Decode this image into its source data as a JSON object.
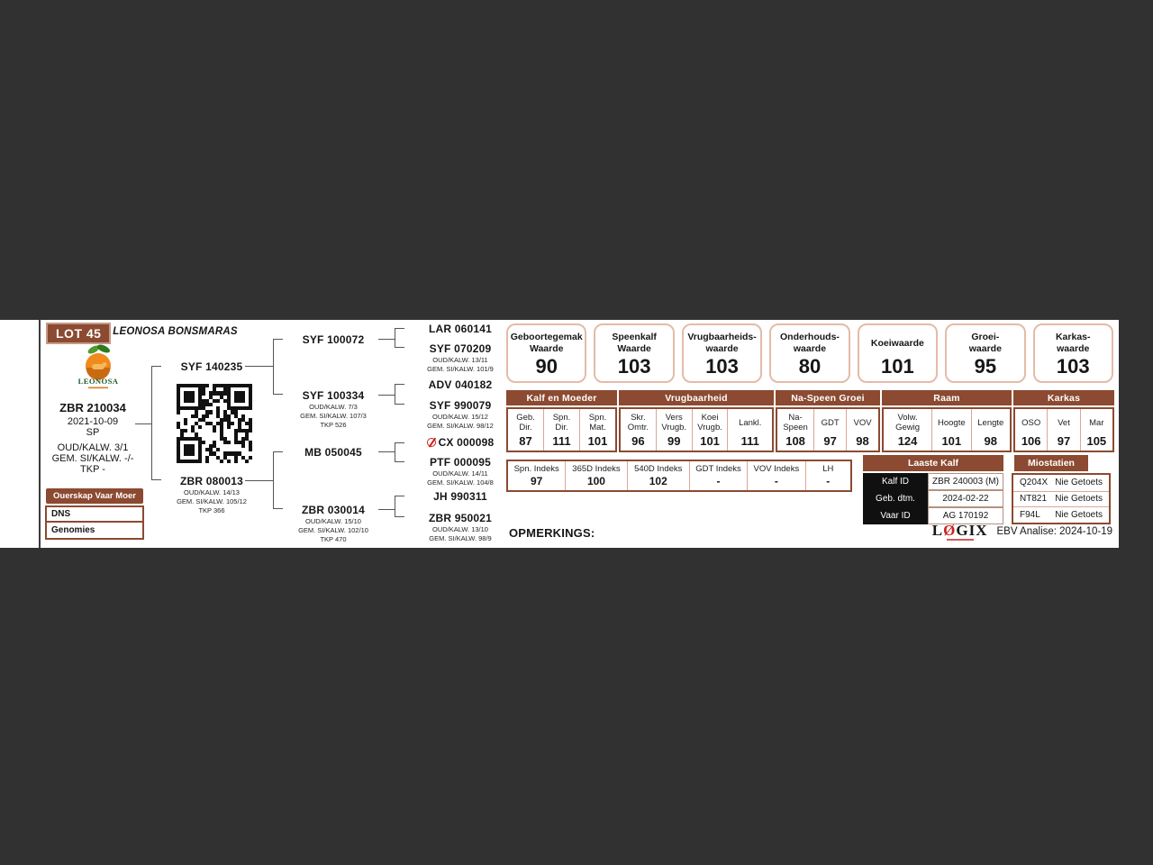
{
  "colors": {
    "brown": "#8B4A31",
    "box_border": "#E4BBA8",
    "cell_border": "#D9A896",
    "red": "#CC2020",
    "dark_bg": "#313131",
    "black_cell": "#101010"
  },
  "header": {
    "lot": "LOT 45",
    "title": "LEONOSA BONSMARAS"
  },
  "logo": {
    "name": "LEONOSA"
  },
  "animal": {
    "id": "ZBR 210034",
    "dob": "2021-10-09",
    "status": "SP",
    "stat1": "OUD/KALW. 3/1",
    "stat2": "GEM. SI/KALW. -/-",
    "stat3": "TKP -"
  },
  "ouerskap": {
    "col1": "Ouerskap",
    "col2": "Vaar",
    "col3": "Moer",
    "row1": "DNS",
    "row2": "Genomies"
  },
  "pedigree": {
    "sire": {
      "id": "SYF 140235"
    },
    "dam": {
      "id": "ZBR 080013",
      "l1": "OUD/KALW. 14/13",
      "l2": "GEM. SI/KALW. 105/12",
      "l3": "TKP 366"
    },
    "gp": [
      {
        "id": "SYF 100072"
      },
      {
        "id": "SYF 100334",
        "l1": "OUD/KALW. 7/3",
        "l2": "GEM. SI/KALW. 107/3",
        "l3": "TKP 526"
      },
      {
        "id": "MB 050045"
      },
      {
        "id": "ZBR 030014",
        "l1": "OUD/KALW. 15/10",
        "l2": "GEM. SI/KALW. 102/10",
        "l3": "TKP 470"
      }
    ],
    "ggp": [
      {
        "id": "LAR 060141"
      },
      {
        "id": "SYF 070209",
        "l1": "OUD/KALW. 13/11",
        "l2": "GEM. SI/KALW. 101/9"
      },
      {
        "id": "ADV 040182"
      },
      {
        "id": "SYF 990079",
        "l1": "OUD/KALW. 15/12",
        "l2": "GEM. SI/KALW. 98/12"
      },
      {
        "id": "CX 000098"
      },
      {
        "id": "PTF 000095",
        "l1": "OUD/KALW. 14/11",
        "l2": "GEM. SI/KALW. 104/8"
      },
      {
        "id": "JH 990311"
      },
      {
        "id": "ZBR 950021",
        "l1": "OUD/KALW. 13/10",
        "l2": "GEM. SI/KALW. 98/9"
      }
    ]
  },
  "value_boxes": [
    {
      "line1": "Geboortegemak",
      "line2": "Waarde",
      "value": "90"
    },
    {
      "line1": "Speenkalf",
      "line2": "Waarde",
      "value": "103"
    },
    {
      "line1": "Vrugbaarheids-",
      "line2": "waarde",
      "value": "103"
    },
    {
      "line1": "Onderhouds-",
      "line2": "waarde",
      "value": "80"
    },
    {
      "line1": "Koeiwaarde",
      "line2": "",
      "value": "101"
    },
    {
      "line1": "Groei-",
      "line2": "waarde",
      "value": "95"
    },
    {
      "line1": "Karkas-",
      "line2": "waarde",
      "value": "103"
    }
  ],
  "ebv_table": {
    "groups": [
      {
        "title": "Kalf en Moeder",
        "cells": [
          {
            "l1": "Geb.",
            "l2": "Dir.",
            "v": "87"
          },
          {
            "l1": "Spn.",
            "l2": "Dir.",
            "v": "111"
          },
          {
            "l1": "Spn.",
            "l2": "Mat.",
            "v": "101"
          }
        ]
      },
      {
        "title": "Vrugbaarheid",
        "cells": [
          {
            "l1": "Skr.",
            "l2": "Omtr.",
            "v": "96"
          },
          {
            "l1": "Vers",
            "l2": "Vrugb.",
            "v": "99"
          },
          {
            "l1": "Koei",
            "l2": "Vrugb.",
            "v": "101"
          },
          {
            "l1": "Lankl.",
            "l2": "",
            "v": "111"
          }
        ]
      },
      {
        "title": "Na-Speen Groei",
        "cells": [
          {
            "l1": "Na-",
            "l2": "Speen",
            "v": "108"
          },
          {
            "l1": "GDT",
            "l2": "",
            "v": "97"
          },
          {
            "l1": "VOV",
            "l2": "",
            "v": "98"
          }
        ]
      },
      {
        "title": "Raam",
        "cells": [
          {
            "l1": "Volw.",
            "l2": "Gewig",
            "v": "124"
          },
          {
            "l1": "Hoogte",
            "l2": "",
            "v": "101"
          },
          {
            "l1": "Lengte",
            "l2": "",
            "v": "98"
          }
        ]
      },
      {
        "title": "Karkas",
        "cells": [
          {
            "l1": "OSO",
            "l2": "",
            "v": "106"
          },
          {
            "l1": "Vet",
            "l2": "",
            "v": "97"
          },
          {
            "l1": "Mar",
            "l2": "",
            "v": "105"
          }
        ]
      }
    ]
  },
  "index_table": {
    "cells": [
      {
        "label": "Spn. Indeks",
        "v": "97"
      },
      {
        "label": "365D Indeks",
        "v": "100"
      },
      {
        "label": "540D Indeks",
        "v": "102"
      },
      {
        "label": "GDT Indeks",
        "v": "-"
      },
      {
        "label": "VOV Indeks",
        "v": "-"
      },
      {
        "label": "LH",
        "v": "-"
      }
    ]
  },
  "laaste_kalf": {
    "title": "Laaste Kalf",
    "rows": [
      {
        "label": "Kalf ID",
        "value": "ZBR 240003 (M)"
      },
      {
        "label": "Geb. dtm.",
        "value": "2024-02-22"
      },
      {
        "label": "Vaar ID",
        "value": "AG 170192"
      }
    ]
  },
  "miostatien": {
    "title": "Miostatien",
    "rows": [
      {
        "gene": "Q204X",
        "status": "Nie Getoets"
      },
      {
        "gene": "NT821",
        "status": "Nie Getoets"
      },
      {
        "gene": "F94L",
        "status": "Nie Getoets"
      }
    ]
  },
  "footer": {
    "opmerkings": "OPMERKINGS:",
    "logix_l": "L",
    "logix_o": "Ø",
    "logix_gix": "GIX",
    "ebv_analise": "EBV Analise: 2024-10-19"
  }
}
